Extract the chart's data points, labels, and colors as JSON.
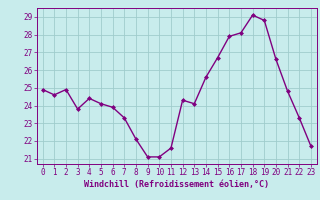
{
  "x": [
    0,
    1,
    2,
    3,
    4,
    5,
    6,
    7,
    8,
    9,
    10,
    11,
    12,
    13,
    14,
    15,
    16,
    17,
    18,
    19,
    20,
    21,
    22,
    23
  ],
  "y": [
    24.9,
    24.6,
    24.9,
    23.8,
    24.4,
    24.1,
    23.9,
    23.3,
    22.1,
    21.1,
    21.1,
    21.6,
    24.3,
    24.1,
    25.6,
    26.7,
    27.9,
    28.1,
    29.1,
    28.8,
    26.6,
    24.8,
    23.3,
    21.7
  ],
  "line_color": "#800080",
  "marker": "D",
  "marker_size": 2.0,
  "bg_color": "#c8ecec",
  "grid_color": "#a0cccc",
  "xlabel": "Windchill (Refroidissement éolien,°C)",
  "xlabel_color": "#800080",
  "tick_color": "#800080",
  "axis_color": "#800080",
  "xlim": [
    -0.5,
    23.5
  ],
  "ylim": [
    20.7,
    29.5
  ],
  "yticks": [
    21,
    22,
    23,
    24,
    25,
    26,
    27,
    28,
    29
  ],
  "xticks": [
    0,
    1,
    2,
    3,
    4,
    5,
    6,
    7,
    8,
    9,
    10,
    11,
    12,
    13,
    14,
    15,
    16,
    17,
    18,
    19,
    20,
    21,
    22,
    23
  ],
  "line_width": 1.0,
  "tick_fontsize": 5.5,
  "xlabel_fontsize": 6.0
}
